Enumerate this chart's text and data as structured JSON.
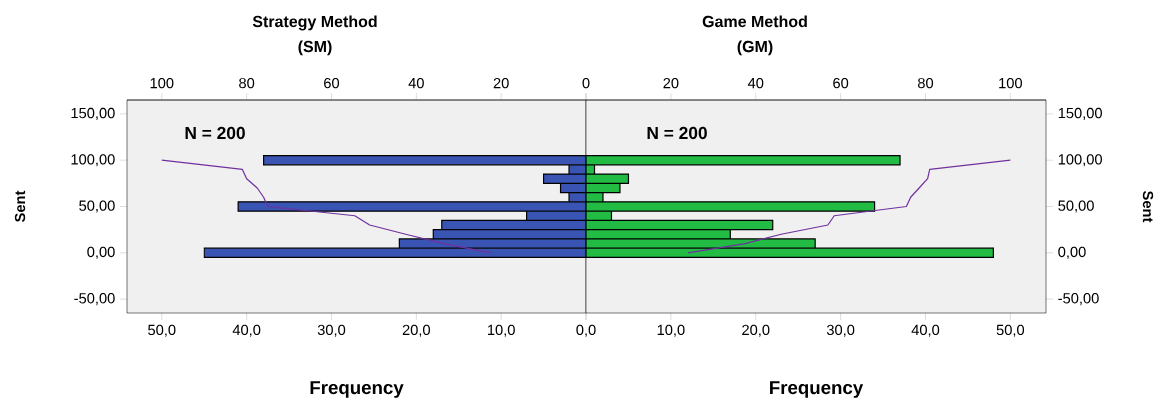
{
  "chart_data": [
    {
      "type": "bar",
      "orientation": "horizontal",
      "title": "Strategy Method",
      "subtitle": "(SM)",
      "xlabel": "Frequency",
      "ylabel": "Sent",
      "annotations": [
        "N = 200"
      ],
      "series": [
        {
          "color": "#3a54b4",
          "x": [
            0,
            10,
            20,
            30,
            40,
            50,
            60,
            70,
            80,
            90,
            100
          ],
          "values": [
            45,
            22,
            18,
            17,
            7,
            41,
            2,
            3,
            5,
            2,
            38
          ]
        },
        {
          "type": "line",
          "axis": "x2",
          "color": "#7030a0",
          "x": [
            0,
            10,
            20,
            30,
            40,
            50,
            60,
            70,
            80,
            90,
            100
          ],
          "values": [
            22.5,
            33.5,
            42.5,
            51,
            54.5,
            75,
            76,
            77.5,
            80,
            81,
            100
          ]
        }
      ],
      "xlim": [
        54.1,
        0
      ],
      "xticks": [
        {
          "value": 50,
          "label": "50,0"
        },
        {
          "value": 40,
          "label": "40,0"
        },
        {
          "value": 30,
          "label": "30,0"
        },
        {
          "value": 20,
          "label": "20,0"
        },
        {
          "value": 10,
          "label": "10,0"
        },
        {
          "value": 0,
          "label": null
        }
      ],
      "x2lim": [
        108.2,
        0
      ],
      "x2ticks": [
        100,
        80,
        60,
        40,
        20,
        {
          "value": 0,
          "label": null
        }
      ],
      "ylim": [
        -65,
        165
      ],
      "yticks": [
        {
          "value": -50,
          "label": "-50,00"
        },
        {
          "value": 0,
          "label": "0,00"
        },
        {
          "value": 50,
          "label": "50,00"
        },
        {
          "value": 100,
          "label": "100,00"
        },
        {
          "value": 150,
          "label": "150,00"
        }
      ]
    },
    {
      "type": "bar",
      "orientation": "horizontal",
      "title": "Game Method",
      "subtitle": "(GM)",
      "xlabel": "Frequency",
      "y2label": "Sent",
      "annotations": [
        "N = 200"
      ],
      "series": [
        {
          "color": "#22bb44",
          "x": [
            0,
            10,
            20,
            30,
            40,
            50,
            60,
            70,
            80,
            90,
            100
          ],
          "values": [
            48,
            27,
            17,
            22,
            3,
            34,
            2,
            4,
            5,
            1,
            37
          ]
        },
        {
          "type": "line",
          "axis": "x2",
          "color": "#7030a0",
          "x": [
            0,
            10,
            20,
            30,
            40,
            50,
            60,
            70,
            80,
            90,
            100
          ],
          "values": [
            24,
            37.5,
            46,
            57,
            58.5,
            75.5,
            76.5,
            78.5,
            80.5,
            81,
            100
          ]
        }
      ],
      "xlim": [
        0,
        54.2
      ],
      "xticks": [
        {
          "value": 0,
          "label": "0,0"
        },
        {
          "value": 10,
          "label": "10,0"
        },
        {
          "value": 20,
          "label": "20,0"
        },
        {
          "value": 30,
          "label": "30,0"
        },
        {
          "value": 40,
          "label": "40,0"
        },
        {
          "value": 50,
          "label": "50,0"
        }
      ],
      "x2lim": [
        0,
        108.4
      ],
      "x2ticks": [
        0,
        20,
        40,
        60,
        80,
        100
      ],
      "ylim": [
        -65,
        165
      ],
      "yticks": [
        {
          "value": -50,
          "label": "-50,00"
        },
        {
          "value": 0,
          "label": "0,00"
        },
        {
          "value": 50,
          "label": "50,00"
        },
        {
          "value": 100,
          "label": "100,00"
        },
        {
          "value": 150,
          "label": "150,00"
        }
      ]
    }
  ]
}
